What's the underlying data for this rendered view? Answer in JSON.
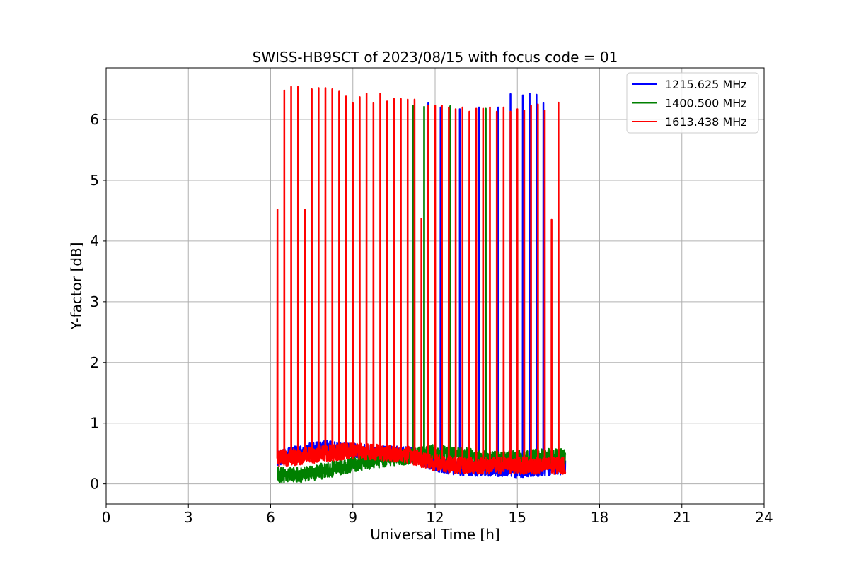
{
  "chart_data": {
    "type": "line",
    "title": "SWISS-HB9SCT of 2023/08/15 with focus code = 01",
    "xlabel": "Universal Time [h]",
    "ylabel": "Y-factor [dB]",
    "xlim": [
      0,
      24
    ],
    "ylim": [
      -0.33,
      6.85
    ],
    "xticks": [
      0,
      3,
      6,
      9,
      12,
      15,
      18,
      21,
      24
    ],
    "yticks": [
      0,
      1,
      2,
      3,
      4,
      5,
      6
    ],
    "grid": true,
    "legend_position": "top-right",
    "data_range_hours": [
      6.25,
      16.75
    ],
    "series": [
      {
        "name": "1215.625 MHz",
        "color": "#0000ff",
        "baseline": [
          [
            6.25,
            0.42
          ],
          [
            7.0,
            0.52
          ],
          [
            8.0,
            0.6
          ],
          [
            9.0,
            0.55
          ],
          [
            10.0,
            0.5
          ],
          [
            11.0,
            0.5
          ],
          [
            12.0,
            0.32
          ],
          [
            13.0,
            0.25
          ],
          [
            14.0,
            0.25
          ],
          [
            15.0,
            0.22
          ],
          [
            16.0,
            0.25
          ],
          [
            16.75,
            0.28
          ]
        ],
        "noise": 0.12,
        "spikes": [
          [
            11.75,
            6.27
          ],
          [
            12.2,
            6.2
          ],
          [
            12.9,
            6.17
          ],
          [
            13.6,
            6.2
          ],
          [
            14.3,
            6.2
          ],
          [
            14.75,
            6.42
          ],
          [
            15.2,
            6.4
          ],
          [
            15.45,
            6.43
          ],
          [
            15.7,
            6.41
          ],
          [
            15.95,
            6.27
          ]
        ]
      },
      {
        "name": "1400.500 MHz",
        "color": "#008000",
        "baseline": [
          [
            6.25,
            0.15
          ],
          [
            7.0,
            0.15
          ],
          [
            8.0,
            0.22
          ],
          [
            9.0,
            0.32
          ],
          [
            10.0,
            0.4
          ],
          [
            11.0,
            0.45
          ],
          [
            12.0,
            0.52
          ],
          [
            13.0,
            0.48
          ],
          [
            14.0,
            0.4
          ],
          [
            15.0,
            0.42
          ],
          [
            16.0,
            0.45
          ],
          [
            16.75,
            0.45
          ]
        ],
        "noise": 0.13,
        "spikes": [
          [
            11.2,
            6.23
          ],
          [
            11.6,
            6.21
          ],
          [
            12.55,
            6.22
          ],
          [
            13.85,
            6.18
          ]
        ]
      },
      {
        "name": "1613.438 MHz",
        "color": "#ff0000",
        "baseline": [
          [
            6.25,
            0.42
          ],
          [
            7.0,
            0.45
          ],
          [
            8.0,
            0.5
          ],
          [
            9.0,
            0.55
          ],
          [
            10.0,
            0.52
          ],
          [
            11.0,
            0.48
          ],
          [
            12.0,
            0.35
          ],
          [
            13.0,
            0.3
          ],
          [
            14.0,
            0.3
          ],
          [
            15.0,
            0.3
          ],
          [
            16.0,
            0.3
          ],
          [
            16.75,
            0.3
          ]
        ],
        "noise": 0.14,
        "spikes": [
          [
            6.25,
            4.52
          ],
          [
            6.5,
            6.48
          ],
          [
            6.75,
            6.54
          ],
          [
            7.0,
            6.54
          ],
          [
            7.25,
            4.52
          ],
          [
            7.5,
            6.5
          ],
          [
            7.75,
            6.52
          ],
          [
            8.0,
            6.52
          ],
          [
            8.25,
            6.5
          ],
          [
            8.5,
            6.46
          ],
          [
            8.75,
            6.38
          ],
          [
            9.0,
            6.27
          ],
          [
            9.25,
            6.37
          ],
          [
            9.5,
            6.43
          ],
          [
            9.75,
            6.27
          ],
          [
            10.0,
            6.43
          ],
          [
            10.25,
            6.3
          ],
          [
            10.5,
            6.34
          ],
          [
            10.75,
            6.34
          ],
          [
            11.0,
            6.33
          ],
          [
            11.25,
            6.33
          ],
          [
            11.5,
            4.37
          ],
          [
            11.75,
            6.23
          ],
          [
            12.0,
            6.23
          ],
          [
            12.25,
            6.23
          ],
          [
            12.5,
            6.2
          ],
          [
            12.75,
            6.17
          ],
          [
            13.0,
            6.2
          ],
          [
            13.25,
            6.13
          ],
          [
            13.5,
            6.18
          ],
          [
            13.75,
            6.18
          ],
          [
            14.0,
            6.2
          ],
          [
            14.25,
            6.13
          ],
          [
            14.5,
            6.2
          ],
          [
            14.75,
            6.13
          ],
          [
            15.0,
            6.17
          ],
          [
            15.25,
            6.15
          ],
          [
            15.5,
            6.23
          ],
          [
            15.75,
            6.25
          ],
          [
            16.0,
            6.15
          ],
          [
            16.25,
            4.35
          ],
          [
            16.5,
            6.28
          ]
        ]
      }
    ]
  }
}
